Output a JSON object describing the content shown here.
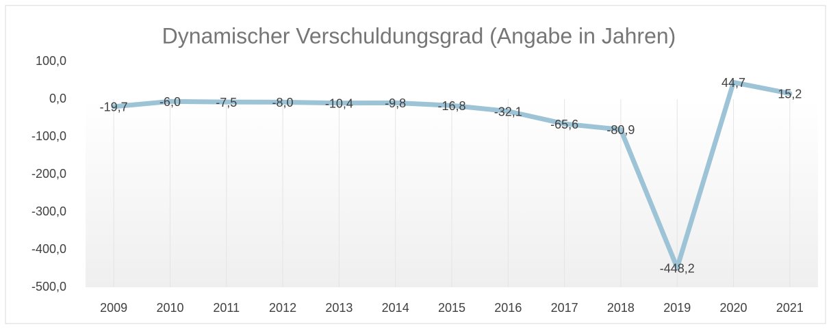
{
  "chart_data": {
    "type": "line",
    "title": "Dynamischer Verschuldungsgrad (Angabe in Jahren)",
    "categories": [
      "2009",
      "2010",
      "2011",
      "2012",
      "2013",
      "2014",
      "2015",
      "2016",
      "2017",
      "2018",
      "2019",
      "2020",
      "2021"
    ],
    "series": [
      {
        "name": "Dynamischer Verschuldungsgrad",
        "color": "#9dc3d6",
        "values": [
          -19.7,
          -6.0,
          -7.5,
          -8.0,
          -10.4,
          -9.8,
          -16.8,
          -32.1,
          -65.6,
          -80.9,
          -448.2,
          44.7,
          15.2
        ],
        "value_labels": [
          "-19,7",
          "-6,0",
          "-7,5",
          "-8,0",
          "-10,4",
          "-9,8",
          "-16,8",
          "-32,1",
          "-65,6",
          "-80,9",
          "-448,2",
          "44,7",
          "15,2"
        ]
      }
    ],
    "ylim": [
      -500,
      100
    ],
    "yticks": [
      {
        "value": 100,
        "label": "100,0"
      },
      {
        "value": 0,
        "label": "0,0"
      },
      {
        "value": -100,
        "label": "-100,0"
      },
      {
        "value": -200,
        "label": "-200,0"
      },
      {
        "value": -300,
        "label": "-300,0"
      },
      {
        "value": -400,
        "label": "-400,0"
      },
      {
        "value": -500,
        "label": "-500,0"
      }
    ],
    "grid": true
  }
}
